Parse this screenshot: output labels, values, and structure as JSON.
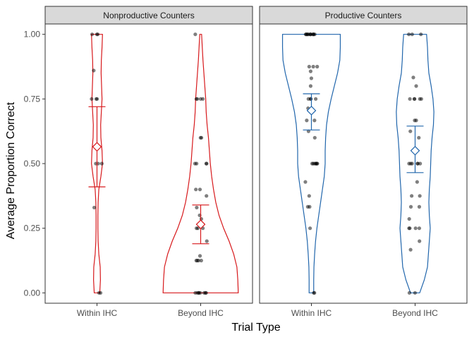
{
  "chart_data": {
    "type": "violin",
    "ylabel": "Average Proportion Correct",
    "xlabel": "Trial Type",
    "categories": [
      "Within IHC",
      "Beyond IHC"
    ],
    "y_ticks": [
      "0.00",
      "0.25",
      "0.50",
      "0.75",
      "1.00"
    ],
    "ylim": [
      -0.04,
      1.04
    ],
    "grid": false,
    "panels": [
      {
        "title": "Nonproductive Counters",
        "color": "#d7191c",
        "groups": [
          {
            "category": "Within IHC",
            "mean": 0.565,
            "ci_low": 0.41,
            "ci_high": 0.72,
            "points": [
              1.0,
              1.0,
              1.0,
              0.86,
              0.75,
              0.75,
              0.75,
              0.5,
              0.5,
              0.5,
              0.33,
              0.0,
              0.0
            ],
            "violin": [
              [
                0.0,
                0.06
              ],
              [
                0.05,
                0.075
              ],
              [
                0.1,
                0.07
              ],
              [
                0.15,
                0.04
              ],
              [
                0.2,
                0.025
              ],
              [
                0.25,
                0.02
              ],
              [
                0.3,
                0.02
              ],
              [
                0.35,
                0.025
              ],
              [
                0.4,
                0.04
              ],
              [
                0.45,
                0.085
              ],
              [
                0.5,
                0.12
              ],
              [
                0.55,
                0.11
              ],
              [
                0.6,
                0.085
              ],
              [
                0.65,
                0.08
              ],
              [
                0.7,
                0.095
              ],
              [
                0.75,
                0.11
              ],
              [
                0.8,
                0.1
              ],
              [
                0.85,
                0.09
              ],
              [
                0.9,
                0.095
              ],
              [
                0.95,
                0.11
              ],
              [
                1.0,
                0.12
              ]
            ]
          },
          {
            "category": "Beyond IHC",
            "mean": 0.265,
            "ci_low": 0.19,
            "ci_high": 0.34,
            "points": [
              1.0,
              0.75,
              0.75,
              0.75,
              0.75,
              0.6,
              0.6,
              0.5,
              0.5,
              0.5,
              0.5,
              0.4,
              0.4,
              0.375,
              0.33,
              0.3,
              0.286,
              0.25,
              0.25,
              0.25,
              0.2,
              0.143,
              0.125,
              0.125,
              0.125,
              0.125,
              0.0,
              0.0,
              0.0,
              0.0,
              0.0,
              0.0,
              0.0,
              0.0
            ],
            "violin": [
              [
                0.0,
                0.82
              ],
              [
                0.05,
                0.81
              ],
              [
                0.1,
                0.79
              ],
              [
                0.15,
                0.72
              ],
              [
                0.2,
                0.62
              ],
              [
                0.25,
                0.5
              ],
              [
                0.3,
                0.4
              ],
              [
                0.35,
                0.33
              ],
              [
                0.4,
                0.28
              ],
              [
                0.45,
                0.24
              ],
              [
                0.5,
                0.21
              ],
              [
                0.55,
                0.19
              ],
              [
                0.6,
                0.17
              ],
              [
                0.65,
                0.14
              ],
              [
                0.7,
                0.12
              ],
              [
                0.75,
                0.11
              ],
              [
                0.8,
                0.09
              ],
              [
                0.85,
                0.07
              ],
              [
                0.9,
                0.05
              ],
              [
                0.95,
                0.035
              ],
              [
                1.0,
                0.02
              ]
            ]
          }
        ]
      },
      {
        "title": "Productive Counters",
        "color": "#2166ac",
        "groups": [
          {
            "category": "Within IHC",
            "mean": 0.705,
            "ci_low": 0.63,
            "ci_high": 0.77,
            "points": [
              1.0,
              1.0,
              1.0,
              1.0,
              1.0,
              1.0,
              1.0,
              1.0,
              1.0,
              1.0,
              1.0,
              1.0,
              0.875,
              0.875,
              0.875,
              0.857,
              0.83,
              0.8,
              0.75,
              0.75,
              0.75,
              0.75,
              0.714,
              0.667,
              0.667,
              0.625,
              0.6,
              0.5,
              0.5,
              0.5,
              0.5,
              0.5,
              0.5,
              0.5,
              0.429,
              0.375,
              0.333,
              0.333,
              0.25,
              0.0,
              0.0
            ],
            "violin": [
              [
                0.0,
                0.05
              ],
              [
                0.05,
                0.05
              ],
              [
                0.1,
                0.055
              ],
              [
                0.15,
                0.07
              ],
              [
                0.2,
                0.09
              ],
              [
                0.25,
                0.12
              ],
              [
                0.3,
                0.16
              ],
              [
                0.35,
                0.2
              ],
              [
                0.4,
                0.24
              ],
              [
                0.45,
                0.28
              ],
              [
                0.5,
                0.3
              ],
              [
                0.55,
                0.3
              ],
              [
                0.6,
                0.31
              ],
              [
                0.65,
                0.33
              ],
              [
                0.7,
                0.37
              ],
              [
                0.75,
                0.43
              ],
              [
                0.8,
                0.5
              ],
              [
                0.85,
                0.57
              ],
              [
                0.9,
                0.62
              ],
              [
                0.95,
                0.63
              ],
              [
                1.0,
                0.63
              ]
            ]
          },
          {
            "category": "Beyond IHC",
            "mean": 0.55,
            "ci_low": 0.465,
            "ci_high": 0.645,
            "points": [
              1.0,
              1.0,
              1.0,
              0.833,
              0.8,
              0.75,
              0.75,
              0.75,
              0.75,
              0.75,
              0.667,
              0.667,
              0.625,
              0.6,
              0.5,
              0.5,
              0.5,
              0.5,
              0.5,
              0.5,
              0.429,
              0.375,
              0.375,
              0.333,
              0.333,
              0.286,
              0.25,
              0.25,
              0.25,
              0.25,
              0.2,
              0.167,
              0.0,
              0.0
            ],
            "violin": [
              [
                0.0,
                0.1
              ],
              [
                0.05,
                0.2
              ],
              [
                0.1,
                0.27
              ],
              [
                0.15,
                0.29
              ],
              [
                0.2,
                0.31
              ],
              [
                0.25,
                0.33
              ],
              [
                0.3,
                0.31
              ],
              [
                0.35,
                0.3
              ],
              [
                0.4,
                0.31
              ],
              [
                0.45,
                0.33
              ],
              [
                0.5,
                0.34
              ],
              [
                0.55,
                0.35
              ],
              [
                0.6,
                0.37
              ],
              [
                0.65,
                0.4
              ],
              [
                0.7,
                0.41
              ],
              [
                0.75,
                0.39
              ],
              [
                0.8,
                0.35
              ],
              [
                0.85,
                0.3
              ],
              [
                0.9,
                0.28
              ],
              [
                0.95,
                0.27
              ],
              [
                1.0,
                0.25
              ]
            ]
          }
        ]
      }
    ]
  }
}
